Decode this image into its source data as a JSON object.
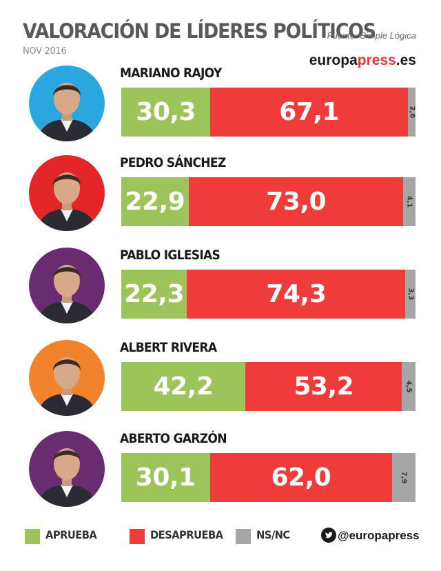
{
  "header": {
    "title": "VALORACIÓN DE LÍDERES POLÍTICOS",
    "date": "NOV 2016",
    "source": "Fuente: Simple Lógica",
    "brand": {
      "part1": "europa",
      "part2": "press",
      "part3": ".es"
    }
  },
  "colors": {
    "aprueba": "#9bc45b",
    "desaprueba": "#f03b3b",
    "nsnc": "#a6a6a6"
  },
  "chart_data": {
    "type": "bar",
    "stacked": true,
    "orientation": "horizontal",
    "title": "VALORACIÓN DE LÍDERES POLÍTICOS",
    "categories": [
      "MARIANO RAJOY",
      "PEDRO SÁNCHEZ",
      "PABLO IGLESIAS",
      "ALBERT RIVERA",
      "ABERTO GARZÓN"
    ],
    "series": [
      {
        "name": "APRUEBA",
        "values": [
          30.3,
          22.9,
          22.3,
          42.2,
          30.1
        ],
        "labels": [
          "30,3",
          "22,9",
          "22,3",
          "42,2",
          "30,1"
        ]
      },
      {
        "name": "DESAPRUEBA",
        "values": [
          67.1,
          73.0,
          74.3,
          53.2,
          62.0
        ],
        "labels": [
          "67,1",
          "73,0",
          "74,3",
          "53,2",
          "62,0"
        ]
      },
      {
        "name": "NS/NC",
        "values": [
          2.6,
          4.1,
          3.3,
          4.5,
          7.9
        ],
        "labels": [
          "2,6",
          "4,1",
          "3,3",
          "4,5",
          "7,9"
        ]
      }
    ],
    "xlim": [
      0,
      100
    ]
  },
  "avatars": [
    {
      "bg": "#2ba7e0",
      "icon": "portrait-icon"
    },
    {
      "bg": "#e32626",
      "icon": "portrait-icon"
    },
    {
      "bg": "#6a2c70",
      "icon": "portrait-icon"
    },
    {
      "bg": "#f2832c",
      "icon": "portrait-icon"
    },
    {
      "bg": "#6a2c70",
      "icon": "portrait-icon"
    }
  ],
  "legend": {
    "items": [
      "APRUEBA",
      "DESAPRUEBA",
      "NS/NC"
    ],
    "twitter_icon": "twitter-icon",
    "handle": "@europapress"
  }
}
